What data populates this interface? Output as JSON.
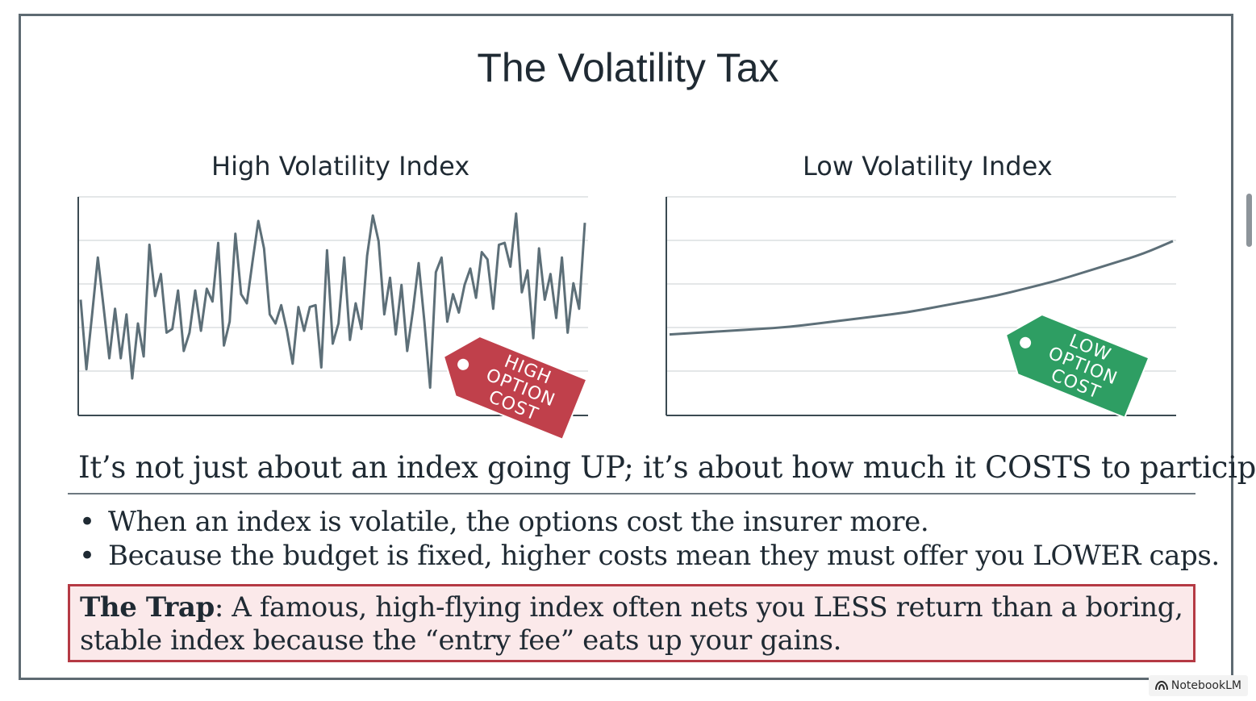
{
  "slide": {
    "title": "The Volatility Tax",
    "intro": "It’s not just about an index going UP; it’s about how much it COSTS to participate.",
    "bullets": [
      "When an index is volatile, the options cost the insurer more.",
      "Because the budget is fixed, higher costs mean they must offer you LOWER caps."
    ],
    "bullet_glyph": "•",
    "trap_label": "The Trap",
    "trap_text": ": A famous, high-flying index often nets you LESS return than a boring, stable index because the “entry fee” eats up your gains."
  },
  "chart_data": [
    {
      "type": "line",
      "title": "High Volatility Index",
      "grid": true,
      "ylim": [
        0,
        100
      ],
      "values": [
        50,
        12,
        42,
        73,
        46,
        18,
        45,
        18,
        42,
        7,
        37,
        19,
        80,
        52,
        64,
        32,
        34,
        55,
        22,
        32,
        55,
        33,
        56,
        49,
        81,
        25,
        38,
        86,
        53,
        48,
        71,
        93,
        78,
        42,
        37,
        47,
        33,
        15,
        46,
        33,
        46,
        47,
        13,
        77,
        26,
        37,
        73,
        28,
        48,
        34,
        74,
        96,
        82,
        42,
        62,
        31,
        58,
        22,
        44,
        70,
        38,
        2,
        65,
        73,
        38,
        53,
        43,
        58,
        67,
        51,
        76,
        72,
        45,
        80,
        81,
        68,
        97,
        54,
        66,
        29,
        78,
        50,
        64,
        40,
        73,
        32,
        59,
        45,
        92
      ],
      "tag": {
        "lines": [
          "HIGH",
          "OPTION",
          "COST"
        ],
        "color": "#c0404b"
      }
    },
    {
      "type": "line",
      "title": "Low Volatility Index",
      "grid": true,
      "ylim": [
        0,
        100
      ],
      "values": [
        31,
        32,
        33,
        34,
        35,
        37,
        39,
        41,
        43,
        46,
        49,
        52,
        56,
        60,
        65,
        70,
        75,
        82
      ],
      "tag": {
        "lines": [
          "LOW",
          "OPTION",
          "COST"
        ],
        "color": "#2e9e63"
      }
    }
  ],
  "brand": {
    "label": "NotebookLM",
    "icon": "notebooklm-logo-icon"
  },
  "colors": {
    "line": "#5d6f78",
    "frame": "#5e6a72",
    "trap_border": "#b53a44",
    "trap_fill": "#fbe9ea"
  }
}
